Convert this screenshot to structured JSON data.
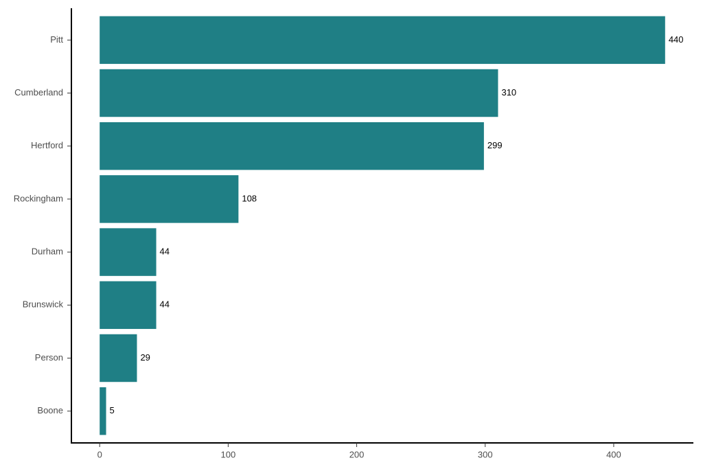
{
  "chart_data": {
    "type": "bar",
    "orientation": "horizontal",
    "categories": [
      "Pitt",
      "Cumberland",
      "Hertford",
      "Rockingham",
      "Durham",
      "Brunswick",
      "Person",
      "Boone"
    ],
    "values": [
      440,
      310,
      299,
      108,
      44,
      44,
      29,
      5
    ],
    "color": "#1f7f85",
    "xlim": [
      -22,
      462
    ],
    "xticks": [
      0,
      100,
      200,
      300,
      400
    ],
    "grid": false
  }
}
